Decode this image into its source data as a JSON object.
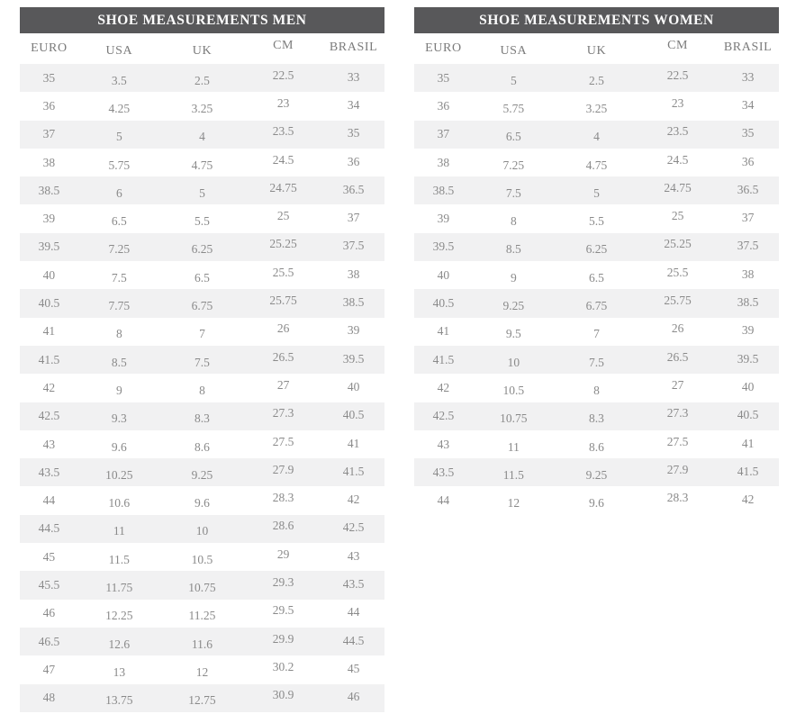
{
  "colors": {
    "title_bar_bg": "#58585a",
    "title_text": "#fdfdfd",
    "stripe_row_bg": "#f1f1f2",
    "header_text": "#7b7b7b",
    "cell_text": "#8a8a8a"
  },
  "tables": [
    {
      "id": "men",
      "title": "SHOE MEASUREMENTS MEN",
      "columns": [
        "EURO",
        "USA",
        "UK",
        "CM",
        "BRASIL"
      ],
      "rows": [
        [
          "35",
          "3.5",
          "2.5",
          "22.5",
          "33"
        ],
        [
          "36",
          "4.25",
          "3.25",
          "23",
          "34"
        ],
        [
          "37",
          "5",
          "4",
          "23.5",
          "35"
        ],
        [
          "38",
          "5.75",
          "4.75",
          "24.5",
          "36"
        ],
        [
          "38.5",
          "6",
          "5",
          "24.75",
          "36.5"
        ],
        [
          "39",
          "6.5",
          "5.5",
          "25",
          "37"
        ],
        [
          "39.5",
          "7.25",
          "6.25",
          "25.25",
          "37.5"
        ],
        [
          "40",
          "7.5",
          "6.5",
          "25.5",
          "38"
        ],
        [
          "40.5",
          "7.75",
          "6.75",
          "25.75",
          "38.5"
        ],
        [
          "41",
          "8",
          "7",
          "26",
          "39"
        ],
        [
          "41.5",
          "8.5",
          "7.5",
          "26.5",
          "39.5"
        ],
        [
          "42",
          "9",
          "8",
          "27",
          "40"
        ],
        [
          "42.5",
          "9.3",
          "8.3",
          "27.3",
          "40.5"
        ],
        [
          "43",
          "9.6",
          "8.6",
          "27.5",
          "41"
        ],
        [
          "43.5",
          "10.25",
          "9.25",
          "27.9",
          "41.5"
        ],
        [
          "44",
          "10.6",
          "9.6",
          "28.3",
          "42"
        ],
        [
          "44.5",
          "11",
          "10",
          "28.6",
          "42.5"
        ],
        [
          "45",
          "11.5",
          "10.5",
          "29",
          "43"
        ],
        [
          "45.5",
          "11.75",
          "10.75",
          "29.3",
          "43.5"
        ],
        [
          "46",
          "12.25",
          "11.25",
          "29.5",
          "44"
        ],
        [
          "46.5",
          "12.6",
          "11.6",
          "29.9",
          "44.5"
        ],
        [
          "47",
          "13",
          "12",
          "30.2",
          "45"
        ],
        [
          "48",
          "13.75",
          "12.75",
          "30.9",
          "46"
        ]
      ]
    },
    {
      "id": "women",
      "title": "SHOE MEASUREMENTS WOMEN",
      "columns": [
        "EURO",
        "USA",
        "UK",
        "CM",
        "BRASIL"
      ],
      "rows": [
        [
          "35",
          "5",
          "2.5",
          "22.5",
          "33"
        ],
        [
          "36",
          "5.75",
          "3.25",
          "23",
          "34"
        ],
        [
          "37",
          "6.5",
          "4",
          "23.5",
          "35"
        ],
        [
          "38",
          "7.25",
          "4.75",
          "24.5",
          "36"
        ],
        [
          "38.5",
          "7.5",
          "5",
          "24.75",
          "36.5"
        ],
        [
          "39",
          "8",
          "5.5",
          "25",
          "37"
        ],
        [
          "39.5",
          "8.5",
          "6.25",
          "25.25",
          "37.5"
        ],
        [
          "40",
          "9",
          "6.5",
          "25.5",
          "38"
        ],
        [
          "40.5",
          "9.25",
          "6.75",
          "25.75",
          "38.5"
        ],
        [
          "41",
          "9.5",
          "7",
          "26",
          "39"
        ],
        [
          "41.5",
          "10",
          "7.5",
          "26.5",
          "39.5"
        ],
        [
          "42",
          "10.5",
          "8",
          "27",
          "40"
        ],
        [
          "42.5",
          "10.75",
          "8.3",
          "27.3",
          "40.5"
        ],
        [
          "43",
          "11",
          "8.6",
          "27.5",
          "41"
        ],
        [
          "43.5",
          "11.5",
          "9.25",
          "27.9",
          "41.5"
        ],
        [
          "44",
          "12",
          "9.6",
          "28.3",
          "42"
        ]
      ]
    }
  ]
}
